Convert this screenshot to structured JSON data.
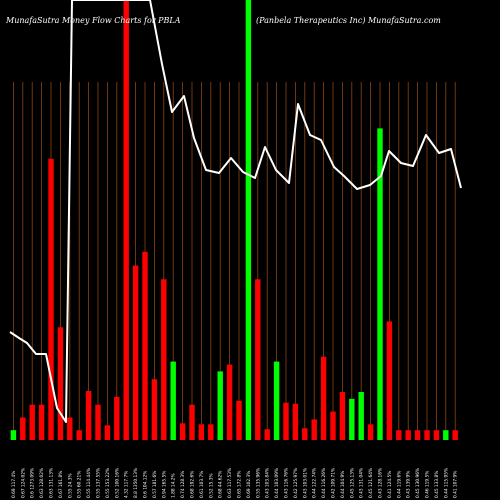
{
  "header": {
    "left_title": "MunafaSutra  Money Flow  Charts for PBLA",
    "right_title": "(Panbela  Therapeutics Inc) MunafaSutra.com"
  },
  "colors": {
    "background": "#000000",
    "gridline": "#8b4513",
    "up": "#00ff00",
    "down": "#ff0000",
    "price_line": "#ffffff"
  },
  "chart_data": {
    "type": "bar",
    "title": "MunafaSutra  Money Flow  Charts for PBLA",
    "subtitle": "(Panbela  Therapeutics Inc) MunafaSutra.com",
    "categories": [
      "0.69 117.4%",
      "0.67 124.02%",
      "0.6 1273.09%",
      "0.63 128.02%",
      "0.63 131.13%",
      "0.67 161.8%",
      "0.55 24.3%",
      "0.55 60.21%",
      "0.55 114.44%",
      "0.55 137.55%",
      "0.55 153.22%",
      "0.52 100.16%",
      "4.32 117.7%",
      "8.8 1350.13%",
      "0.6 104.12%",
      "0.57 181.6%",
      "0.94 165.5%",
      "1.88 14.2%",
      "0.74 128.3%",
      "0.68 192.6%",
      "0.61 103.7%",
      "0.52 15.3%",
      "0.68 44.62%",
      "0.63 117.53%",
      "0.65 172.8%",
      "0.69 102.3%",
      "0.55 135.96%",
      "0.43 103.84%",
      "0.44 103.09%",
      "0.43 116.76%",
      "0.42 125.97%",
      "0.43 103.01%",
      "0.44 122.74%",
      "0.44 116.26%",
      "0.42 109.71%",
      "0.44 104.9%",
      "0.45 125.13%",
      "0.43 131.04%",
      "0.45 121.64%",
      "0.43 128.16%",
      "0.41 124.5%",
      "0.44 119.6%",
      "0.43 139.9%",
      "0.45 130.96%",
      "0.46 119.5%",
      "0.45 133.8%",
      "0.44 115.95%",
      "0.41 107.9%"
    ],
    "series": [
      {
        "kind": "volume",
        "direction": [
          "up",
          "down",
          "down",
          "down",
          "down",
          "down",
          "down",
          "down",
          "down",
          "down",
          "down",
          "down",
          "down",
          "down",
          "down",
          "down",
          "down",
          "up",
          "down",
          "down",
          "down",
          "down",
          "up",
          "down",
          "down",
          "up",
          "down",
          "down",
          "up",
          "down",
          "down",
          "down",
          "down",
          "down",
          "down",
          "down",
          "up",
          "up",
          "down",
          "up",
          "down",
          "down",
          "down",
          "down",
          "down",
          "down",
          "up",
          "down"
        ],
        "values": [
          10,
          23,
          36,
          36,
          287,
          115,
          23,
          10,
          50,
          36,
          15,
          44,
          2000,
          178,
          192,
          62,
          164,
          80,
          17,
          36,
          16,
          16,
          70,
          77,
          40,
          2000,
          164,
          11,
          80,
          38,
          37,
          12,
          21,
          85,
          29,
          49,
          42,
          49,
          16,
          318,
          121,
          10,
          10,
          10,
          10,
          10,
          10,
          10
        ]
      },
      {
        "kind": "price",
        "values": [
          0.69,
          0.67,
          0.6,
          0.63,
          0.63,
          0.67,
          0.55,
          0.55,
          0.55,
          0.55,
          0.55,
          0.52,
          4.32,
          8.8,
          0.6,
          0.57,
          0.94,
          1.88,
          0.74,
          0.68,
          0.61,
          0.52,
          0.68,
          0.63,
          0.65,
          0.69,
          0.55,
          0.43,
          0.44,
          0.43,
          0.42,
          0.43,
          0.44,
          0.44,
          0.42,
          0.44,
          0.45,
          0.43,
          0.45,
          0.43,
          0.41,
          0.44,
          0.43,
          0.45,
          0.46,
          0.45,
          0.44,
          0.41
        ]
      }
    ]
  }
}
